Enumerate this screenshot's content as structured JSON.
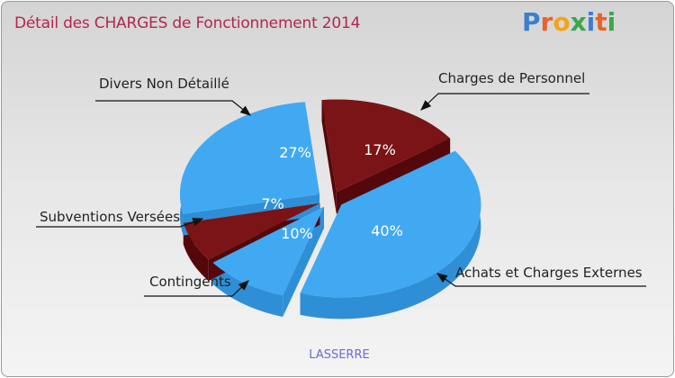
{
  "title": "Détail des CHARGES de Fonctionnement 2014",
  "logo": "Proxiti",
  "subtitle": "LASSERRE",
  "colors": {
    "blue": "#41a9f2",
    "blue_dark": "#2f8fd6",
    "red": "#7a1416",
    "red_dark": "#55080b",
    "title": "#b3264d"
  },
  "chart_data": {
    "type": "pie",
    "title": "Détail des CHARGES de Fonctionnement 2014",
    "slices": [
      {
        "label": "Charges de Personnel",
        "value": 17,
        "display": "17%",
        "color": "red"
      },
      {
        "label": "Achats et Charges Externes",
        "value": 40,
        "display": "40%",
        "color": "blue"
      },
      {
        "label": "Contingents",
        "value": 10,
        "display": "10%",
        "color": "blue"
      },
      {
        "label": "Subventions Versées",
        "value": 7,
        "display": "7%",
        "color": "red"
      },
      {
        "label": "Divers Non Détaillé",
        "value": 27,
        "display": "27%",
        "color": "blue"
      }
    ]
  }
}
